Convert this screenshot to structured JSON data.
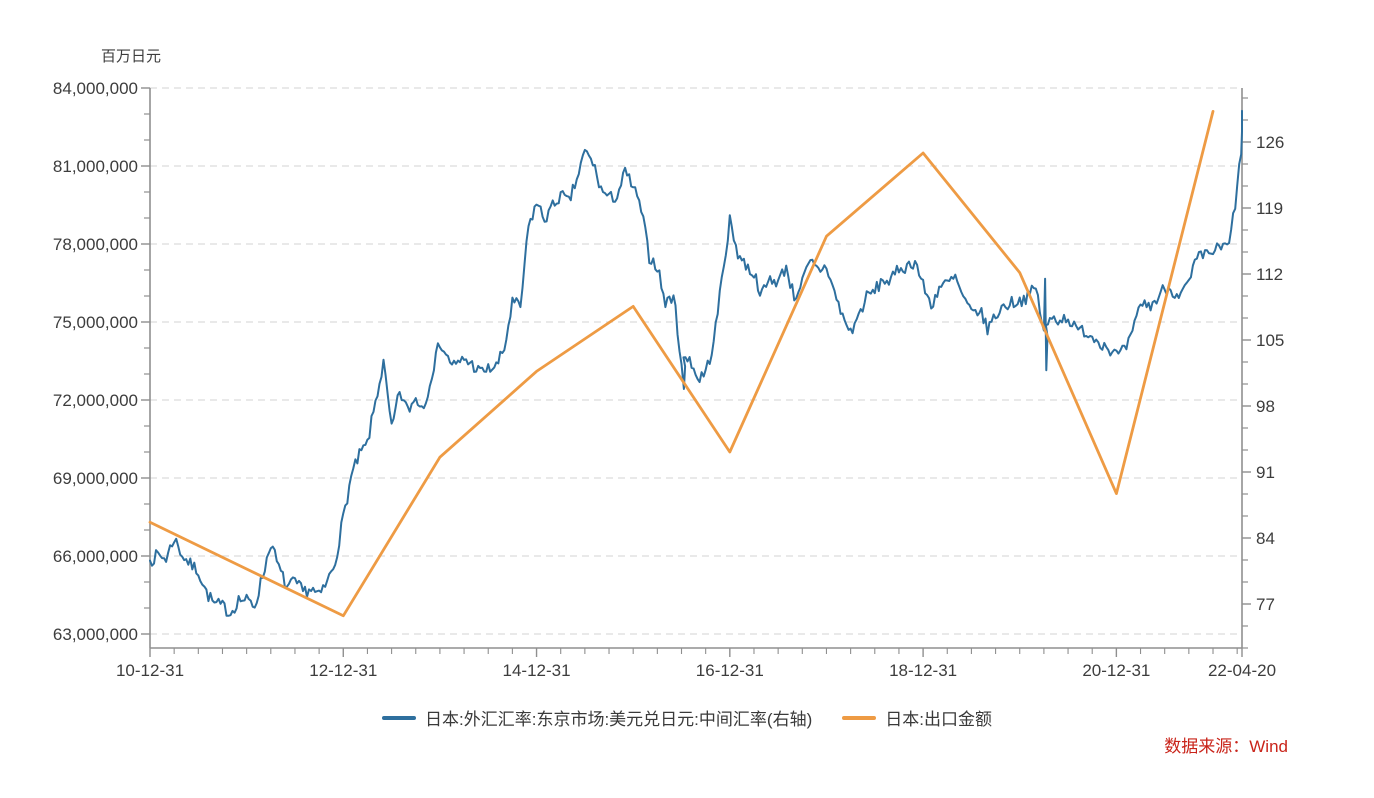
{
  "axis_titles": {
    "left": "百万日元"
  },
  "source_note": "数据来源：Wind",
  "colors": {
    "fx_line": "#2e6f9e",
    "export_line": "#ee9b44",
    "source_text": "#c9241a",
    "axis_line": "#8f8f8f",
    "grid_line": "#dcdcdc",
    "text": "#3d3d3d",
    "background": "#ffffff"
  },
  "legend": [
    {
      "id": "fx",
      "label": "日本:外汇汇率:东京市场:美元兑日元:中间汇率(右轴)",
      "color": "#2e6f9e"
    },
    {
      "id": "export",
      "label": "日本:出口金额",
      "color": "#ee9b44"
    }
  ],
  "chart_data": {
    "type": "line",
    "title": "",
    "grid": "dashed-horizontal",
    "legend_position": "bottom-center",
    "x_axis": {
      "tick_labels": [
        "10-12-31",
        "12-12-31",
        "14-12-31",
        "16-12-31",
        "18-12-31",
        "20-12-31",
        "22-04-20"
      ],
      "tick_years": [
        0,
        2,
        4,
        6,
        8,
        10,
        11.3
      ],
      "minor_tick_step_years": 0.25,
      "range_years": [
        0,
        11.3
      ]
    },
    "left_axis": {
      "unit": "百万日元",
      "tick_labels": [
        "84,000,000",
        "81,000,000",
        "78,000,000",
        "75,000,000",
        "72,000,000",
        "69,000,000",
        "66,000,000",
        "63,000,000"
      ],
      "tick_values": [
        84000000,
        81000000,
        78000000,
        75000000,
        72000000,
        69000000,
        66000000,
        63000000
      ],
      "minor_step": 1000000
    },
    "right_axis": {
      "tick_labels": [
        "126",
        "119",
        "112",
        "105",
        "98",
        "91",
        "84",
        "77"
      ],
      "tick_values": [
        126,
        119,
        112,
        105,
        98,
        91,
        84,
        77
      ],
      "minor_step": 2.3333
    },
    "series": [
      {
        "name": "日本:外汇汇率:东京市场:美元兑日元:中间汇率(右轴)",
        "axis": "right",
        "color": "#2e6f9e",
        "freq": "monthly",
        "start": "2010-12",
        "end": "2022-04-20",
        "values": [
          81.6,
          82.2,
          81.8,
          84.0,
          82.2,
          81.2,
          80.5,
          78.2,
          77.0,
          76.8,
          76.0,
          77.5,
          77.4,
          76.8,
          80.0,
          83.5,
          80.8,
          78.8,
          79.3,
          78.3,
          78.6,
          77.8,
          79.3,
          81.5,
          86.2,
          90.5,
          92.8,
          94.0,
          98.5,
          102.5,
          95.5,
          99.5,
          97.5,
          98.8,
          97.8,
          101.5,
          104.8,
          103.0,
          102.2,
          103.0,
          102.4,
          101.6,
          101.9,
          102.2,
          104.0,
          109.0,
          108.5,
          117.0,
          119.5,
          117.8,
          119.2,
          120.4,
          119.6,
          122.0,
          125.0,
          123.8,
          121.0,
          120.0,
          120.3,
          122.8,
          121.2,
          118.8,
          113.8,
          112.8,
          108.8,
          109.8,
          102.6,
          103.2,
          100.8,
          101.6,
          104.6,
          111.5,
          117.6,
          114.2,
          112.9,
          112.0,
          109.8,
          111.5,
          111.2,
          112.8,
          109.5,
          111.2,
          113.2,
          112.4,
          112.8,
          110.0,
          107.5,
          105.8,
          107.6,
          109.6,
          110.2,
          111.4,
          111.2,
          112.6,
          112.8,
          113.4,
          110.8,
          108.6,
          110.6,
          111.0,
          111.6,
          109.4,
          107.8,
          108.2,
          106.2,
          107.6,
          108.6,
          109.0,
          109.2,
          109.6,
          110.6,
          105.8,
          107.4,
          107.2,
          107.4,
          106.0,
          106.0,
          105.4,
          104.8,
          104.2,
          103.4,
          103.8,
          105.6,
          109.0,
          108.6,
          109.2,
          110.6,
          110.2,
          109.8,
          111.0,
          113.6,
          114.0,
          114.4,
          114.8,
          115.0,
          121.0,
          129.3
        ],
        "spikes": [
          {
            "index": 66,
            "low": 99.8
          },
          {
            "index": 111,
            "high": 111.5,
            "low": 101.8
          }
        ]
      },
      {
        "name": "日本:出口金额",
        "axis": "left",
        "color": "#ee9b44",
        "freq": "annual",
        "start": "2010",
        "values": [
          67300000,
          65500000,
          63700000,
          69800000,
          73100000,
          75600000,
          70000000,
          78300000,
          81500000,
          76900000,
          68400000,
          83100000
        ]
      }
    ]
  }
}
